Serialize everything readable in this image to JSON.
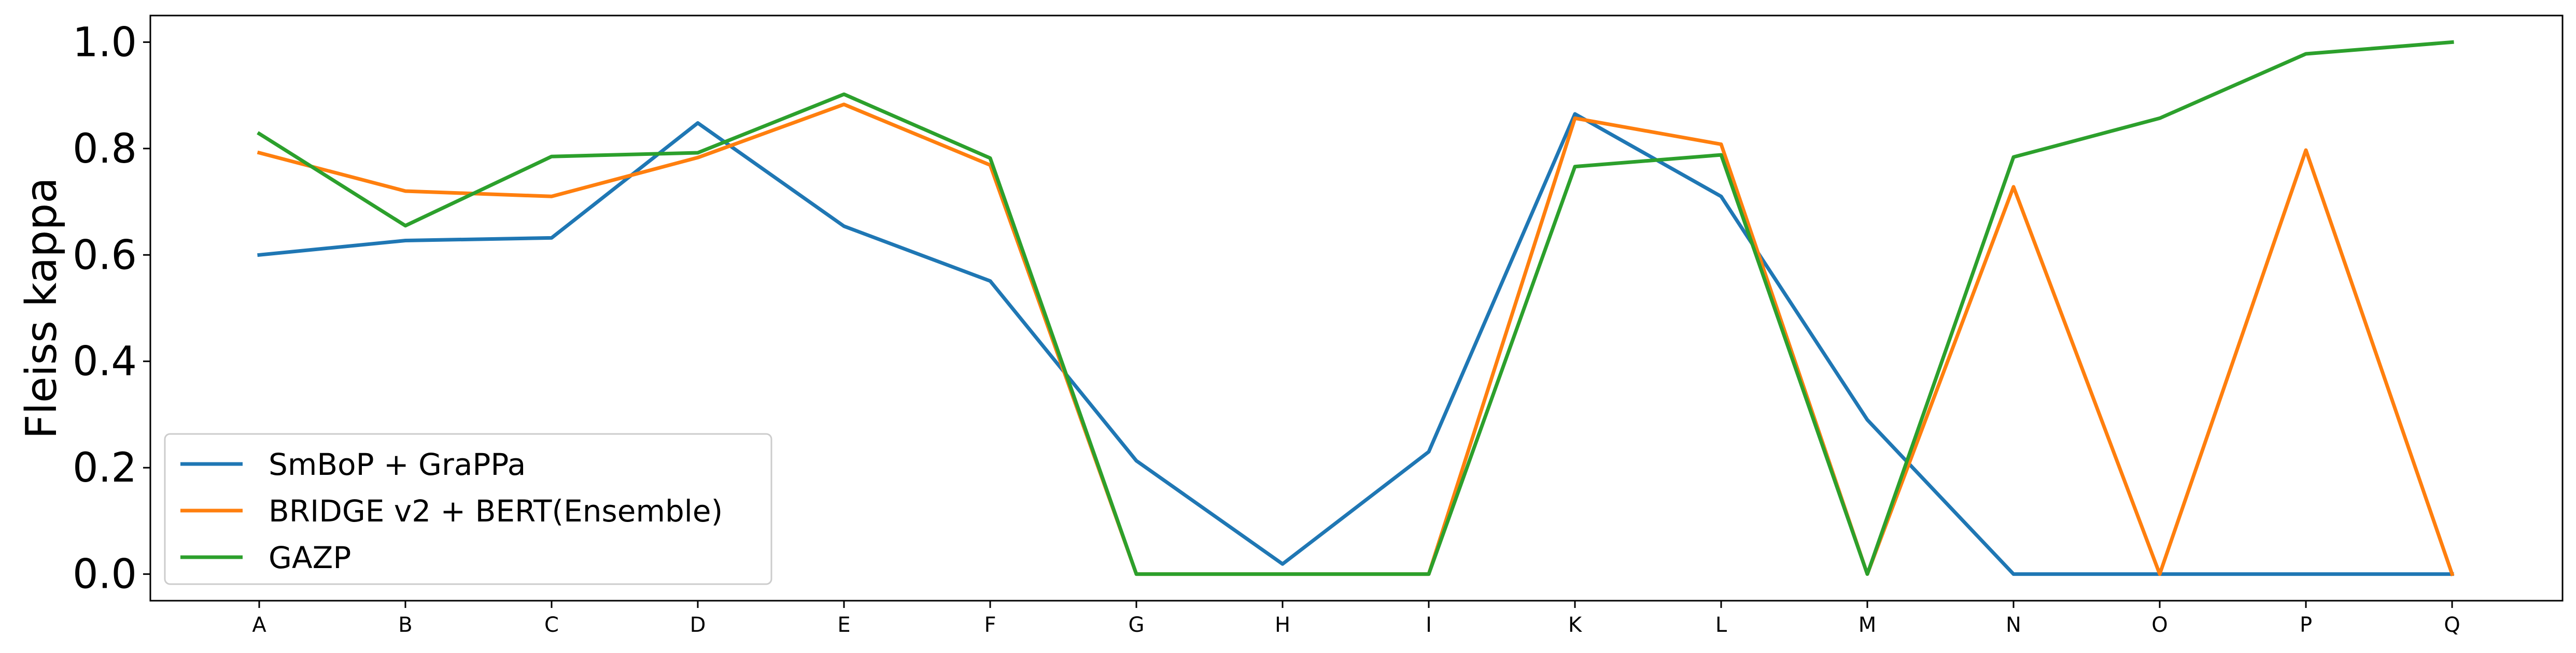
{
  "chart_data": {
    "type": "line",
    "title": "",
    "xlabel": "",
    "ylabel": "Fleiss kappa",
    "categories": [
      "A",
      "B",
      "C",
      "D",
      "E",
      "F",
      "G",
      "H",
      "I",
      "K",
      "L",
      "M",
      "N",
      "O",
      "P",
      "Q"
    ],
    "yticks": [
      "0.0",
      "0.2",
      "0.4",
      "0.6",
      "0.8",
      "1.0"
    ],
    "ylim": [
      -0.05,
      1.05
    ],
    "grid": false,
    "legend_position": "lower-left",
    "series": [
      {
        "name": "SmBoP + GraPPa",
        "color": "#1f77b4",
        "values": [
          0.6,
          0.627,
          0.632,
          0.848,
          0.654,
          0.551,
          0.213,
          0.019,
          0.23,
          0.865,
          0.71,
          0.29,
          0.0,
          0.0,
          0.0,
          0.0
        ]
      },
      {
        "name": "BRIDGE v2 + BERT(Ensemble)",
        "color": "#ff7f0e",
        "values": [
          0.792,
          0.72,
          0.71,
          0.783,
          0.883,
          0.769,
          0.0,
          0.0,
          0.0,
          0.857,
          0.808,
          0.0,
          0.728,
          0.0,
          0.797,
          0.0
        ]
      },
      {
        "name": "GAZP",
        "color": "#2ca02c",
        "values": [
          0.828,
          0.655,
          0.785,
          0.792,
          0.902,
          0.782,
          0.0,
          0.0,
          0.0,
          0.766,
          0.788,
          0.0,
          0.784,
          0.857,
          0.978,
          1.0
        ]
      }
    ]
  }
}
